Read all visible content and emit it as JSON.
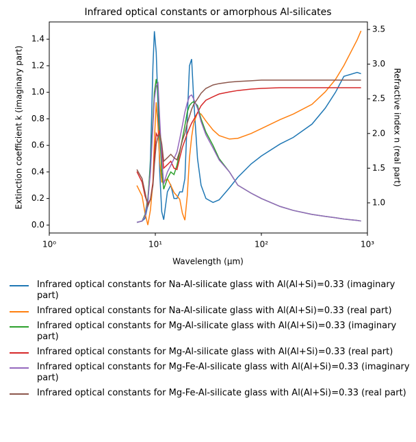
{
  "chart_data": {
    "type": "line",
    "title": "Infrared optical constants or amorphous Al-silicates",
    "xlabel": "Wavelength (μm)",
    "ylabel": "Extinction coefficient k (imaginary part)",
    "y2label": "Refractive index n (real part)",
    "xscale": "log",
    "xlim": [
      1,
      1000
    ],
    "xticks": [
      {
        "value": 1,
        "label": "10⁰"
      },
      {
        "value": 10,
        "label": "10¹"
      },
      {
        "value": 100,
        "label": "10²"
      },
      {
        "value": 1000,
        "label": "10³"
      }
    ],
    "ylim": [
      -0.06,
      1.53
    ],
    "yticks": [
      {
        "value": 0,
        "label": "0.0"
      },
      0.2,
      0.4,
      0.6,
      0.8,
      {
        "value": 1,
        "label": "1.0"
      },
      1.2,
      1.4
    ],
    "y2lim": [
      0.565,
      3.609
    ],
    "y2ticks": [
      {
        "value": 1,
        "label": "1.0"
      },
      1.5,
      {
        "value": 2,
        "label": "2.0"
      },
      2.5,
      {
        "value": 3,
        "label": "3.0"
      },
      3.5
    ],
    "x": [
      6.7,
      7.5,
      8,
      8.5,
      9,
      9.5,
      9.8,
      10.2,
      10.6,
      11,
      11.5,
      12,
      13,
      14,
      15,
      16,
      17,
      18,
      19,
      20,
      21,
      22,
      23,
      25,
      27,
      30,
      35,
      40,
      50,
      60,
      80,
      100,
      150,
      200,
      300,
      400,
      500,
      600,
      800,
      870
    ],
    "series": [
      {
        "name": "Infrared optical constants for Na-Al-silicate glass with Al(Al+Si)=0.33 (imaginary part)",
        "color": "#1f77b4",
        "axis": "y",
        "values": [
          0.02,
          0.03,
          0.05,
          0.15,
          0.5,
          1.2,
          1.46,
          1.3,
          0.9,
          0.4,
          0.1,
          0.04,
          0.25,
          0.3,
          0.2,
          0.2,
          0.25,
          0.25,
          0.35,
          0.8,
          1.2,
          1.25,
          0.95,
          0.5,
          0.3,
          0.2,
          0.17,
          0.19,
          0.28,
          0.36,
          0.46,
          0.52,
          0.61,
          0.66,
          0.76,
          0.88,
          1.0,
          1.12,
          1.15,
          1.14
        ]
      },
      {
        "name": "Infrared optical constants for Na-Al-silicate glass with Al(Al+Si)=0.33 (real part)",
        "color": "#ff7f0e",
        "axis": "y2",
        "values": [
          1.25,
          1.1,
          0.85,
          0.68,
          0.9,
          1.3,
          1.9,
          2.45,
          2.1,
          1.6,
          1.3,
          1.3,
          1.35,
          1.25,
          1.15,
          1.1,
          1.05,
          0.85,
          0.75,
          1.1,
          1.65,
          1.95,
          2.15,
          2.3,
          2.28,
          2.18,
          2.05,
          1.97,
          1.92,
          1.93,
          2.0,
          2.07,
          2.2,
          2.28,
          2.42,
          2.6,
          2.78,
          2.98,
          3.35,
          3.48
        ]
      },
      {
        "name": "Infrared optical constants for Mg-Al-silicate glass with Al(Al+Si)=0.33 (imaginary part)",
        "color": "#2ca02c",
        "axis": "y",
        "values": [
          0.02,
          0.03,
          0.08,
          0.2,
          0.45,
          0.8,
          1.0,
          1.1,
          1.0,
          0.7,
          0.4,
          0.27,
          0.35,
          0.4,
          0.38,
          0.45,
          0.55,
          0.65,
          0.75,
          0.85,
          0.9,
          0.92,
          0.93,
          0.9,
          0.8,
          0.7,
          0.6,
          0.5,
          0.4,
          0.3,
          0.24,
          0.2,
          0.14,
          0.11,
          0.08,
          0.065,
          0.055,
          0.045,
          0.035,
          0.03
        ]
      },
      {
        "name": "Infrared optical constants for Mg-Al-silicate glass with Al(Al+Si)=0.33 (real part)",
        "color": "#d62728",
        "axis": "y2",
        "values": [
          1.45,
          1.3,
          1.1,
          0.98,
          1.05,
          1.3,
          1.7,
          2.0,
          1.95,
          2.05,
          1.8,
          1.5,
          1.55,
          1.6,
          1.5,
          1.48,
          1.65,
          1.8,
          1.9,
          2.0,
          2.08,
          2.15,
          2.2,
          2.3,
          2.4,
          2.48,
          2.53,
          2.57,
          2.6,
          2.62,
          2.64,
          2.65,
          2.66,
          2.66,
          2.66,
          2.66,
          2.66,
          2.66,
          2.66,
          2.66
        ]
      },
      {
        "name": "Infrared optical constants for Mg-Fe-Al-silicate glass with Al(Al+Si)=0.33 (imaginary part)",
        "color": "#9467bd",
        "axis": "y",
        "values": [
          0.02,
          0.03,
          0.07,
          0.18,
          0.4,
          0.75,
          0.95,
          1.05,
          1.07,
          0.8,
          0.5,
          0.31,
          0.4,
          0.45,
          0.5,
          0.55,
          0.65,
          0.75,
          0.85,
          0.92,
          0.97,
          0.98,
          0.95,
          0.88,
          0.78,
          0.68,
          0.58,
          0.49,
          0.4,
          0.3,
          0.24,
          0.2,
          0.14,
          0.11,
          0.08,
          0.065,
          0.055,
          0.045,
          0.035,
          0.03
        ]
      },
      {
        "name": "Infrared optical constants for Mg-Fe-Al-silicate glass with Al(Al+Si)=0.33 (real part)",
        "color": "#8c564b",
        "axis": "y2",
        "values": [
          1.48,
          1.35,
          1.15,
          0.95,
          1.05,
          1.25,
          1.55,
          1.85,
          1.95,
          2.0,
          1.85,
          1.6,
          1.65,
          1.7,
          1.65,
          1.62,
          1.75,
          1.9,
          2.0,
          2.15,
          2.25,
          2.35,
          2.42,
          2.5,
          2.58,
          2.65,
          2.7,
          2.72,
          2.74,
          2.75,
          2.76,
          2.77,
          2.77,
          2.77,
          2.77,
          2.77,
          2.77,
          2.77,
          2.77,
          2.77
        ]
      }
    ]
  }
}
